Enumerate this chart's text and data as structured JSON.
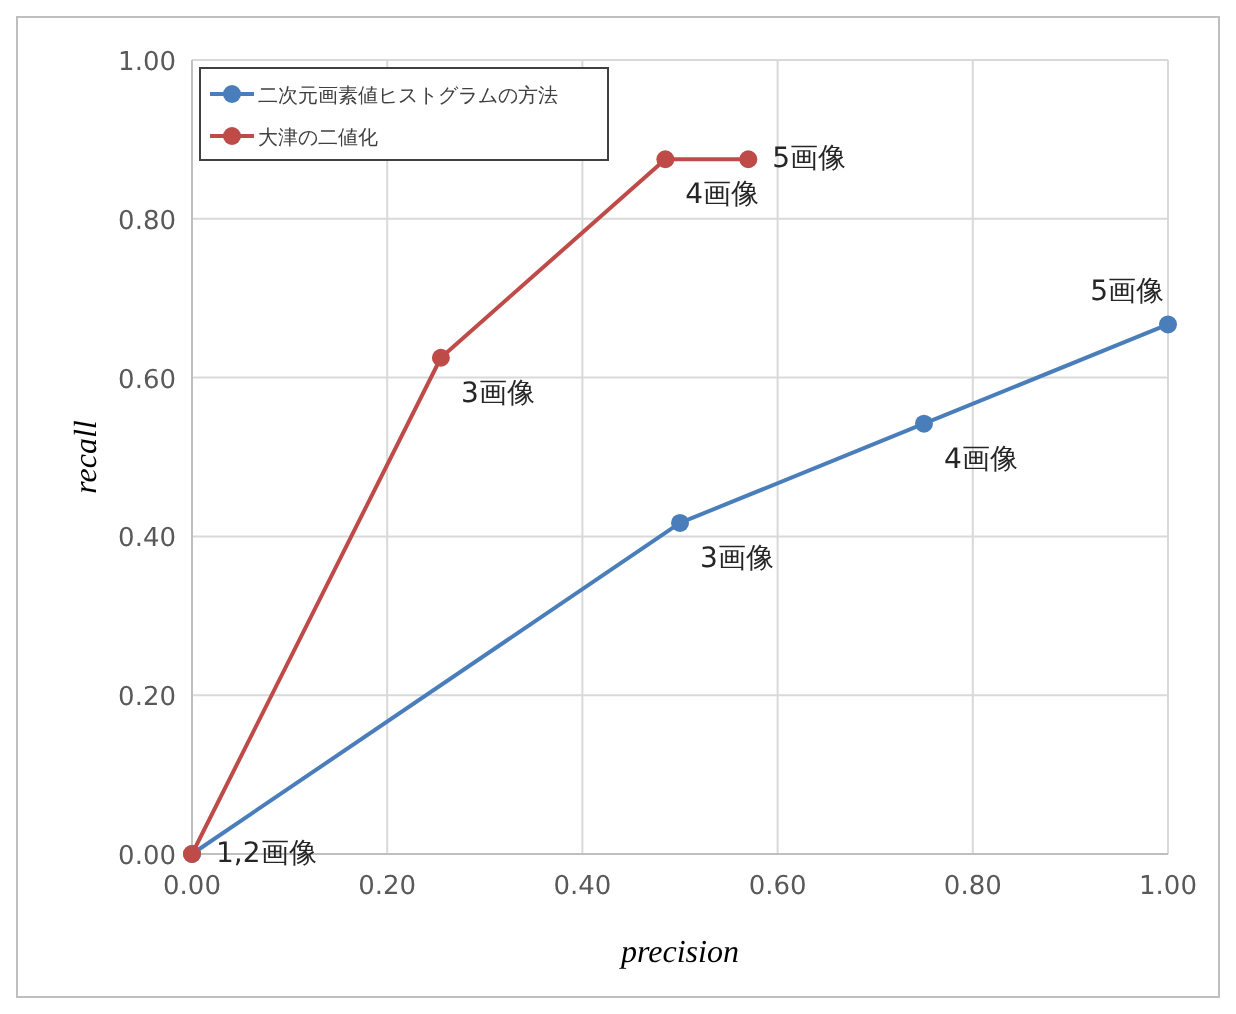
{
  "chart_data": {
    "type": "line",
    "xlabel": "precision",
    "ylabel": "recall",
    "xlim": [
      0,
      1
    ],
    "ylim": [
      0,
      1
    ],
    "xticks": [
      {
        "value": 0,
        "label": "0.00"
      },
      {
        "value": 0.2,
        "label": "0.20"
      },
      {
        "value": 0.4,
        "label": "0.40"
      },
      {
        "value": 0.6,
        "label": "0.60"
      },
      {
        "value": 0.8,
        "label": "0.80"
      },
      {
        "value": 1,
        "label": "1.00"
      }
    ],
    "yticks": [
      {
        "value": 0,
        "label": "0.00"
      },
      {
        "value": 0.2,
        "label": "0.20"
      },
      {
        "value": 0.4,
        "label": "0.40"
      },
      {
        "value": 0.6,
        "label": "0.60"
      },
      {
        "value": 0.8,
        "label": "0.80"
      },
      {
        "value": 1,
        "label": "1.00"
      }
    ],
    "grid": true,
    "legend": "top left",
    "marker": "circle",
    "line_style": "solid",
    "series": [
      {
        "name": "二次元画素値ヒストグラムの方法",
        "color": "#4a7ebb",
        "x": [
          0,
          0.5,
          0.75,
          1
        ],
        "values": [
          0,
          0.417,
          0.542,
          0.667
        ]
      },
      {
        "name": "大津の二値化",
        "color": "#be4b48",
        "x": [
          0,
          0.255,
          0.485,
          0.57
        ],
        "values": [
          0,
          0.625,
          0.875,
          0.875
        ]
      }
    ],
    "annotations": [
      {
        "text": "1,2画像",
        "x": 0,
        "y": 0
      },
      {
        "text": "3画像",
        "x": 0.255,
        "y": 0.625
      },
      {
        "text": "4画像",
        "x": 0.485,
        "y": 0.875
      },
      {
        "text": "5画像",
        "x": 0.57,
        "y": 0.875
      },
      {
        "text": "3画像",
        "x": 0.5,
        "y": 0.417
      },
      {
        "text": "4画像",
        "x": 0.75,
        "y": 0.542
      },
      {
        "text": "5画像",
        "x": 1,
        "y": 0.667
      }
    ]
  }
}
